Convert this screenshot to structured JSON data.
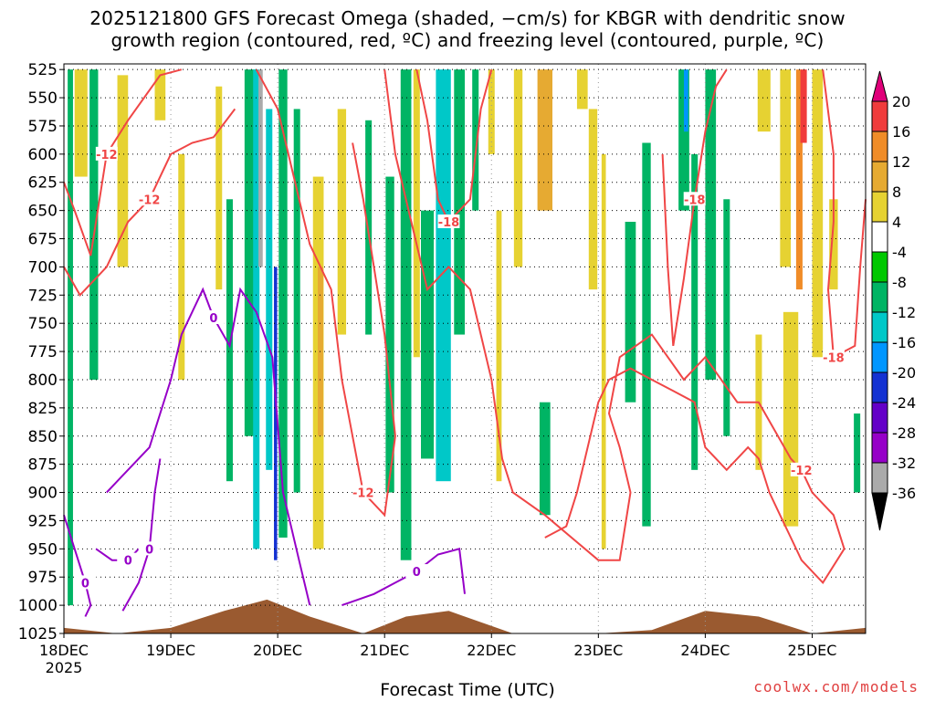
{
  "title": {
    "line1": "2025121800 GFS Forecast Omega (shaded, −cm/s) for KBGR with dendritic snow",
    "line2": "growth region (contoured, red, ºC) and freezing level (contoured, purple, ºC)"
  },
  "credit": "coolwx.com/models",
  "chart_data": {
    "type": "heatmap",
    "xlabel": "Forecast Time (UTC)",
    "x_ticks": [
      "18DEC",
      "19DEC",
      "20DEC",
      "21DEC",
      "22DEC",
      "23DEC",
      "24DEC",
      "25DEC"
    ],
    "x_tick_sublabel": "2025",
    "x_range_days": [
      0,
      7.5
    ],
    "y_ticks": [
      525,
      550,
      575,
      600,
      625,
      650,
      675,
      700,
      725,
      750,
      775,
      800,
      825,
      850,
      875,
      900,
      925,
      950,
      975,
      1000,
      1025
    ],
    "y_range": [
      520,
      1025
    ],
    "grid": "dotted",
    "colorbar": {
      "levels": [
        "20",
        "16",
        "12",
        "8",
        "4",
        "-4",
        "-8",
        "-12",
        "-16",
        "-20",
        "-24",
        "-28",
        "-32",
        "-36"
      ],
      "colors": [
        "#e0007a",
        "#f03c3c",
        "#f08c28",
        "#e6aa32",
        "#e6d232",
        "#ffffff",
        "#00c800",
        "#00b464",
        "#00c8c8",
        "#0096ff",
        "#1432d2",
        "#6400c8",
        "#9600c8",
        "#aaaaaa",
        "#000000"
      ]
    },
    "omega_bands": [
      {
        "t": 0.06,
        "p1": 525,
        "p2": 1000,
        "v": -8,
        "w": 0.05
      },
      {
        "t": 0.16,
        "p1": 525,
        "p2": 620,
        "v": 6,
        "w": 0.12
      },
      {
        "t": 0.28,
        "p1": 525,
        "p2": 800,
        "v": -8,
        "w": 0.08
      },
      {
        "t": 0.55,
        "p1": 530,
        "p2": 700,
        "v": 5,
        "w": 0.1
      },
      {
        "t": 0.9,
        "p1": 525,
        "p2": 570,
        "v": 6,
        "w": 0.1
      },
      {
        "t": 1.1,
        "p1": 600,
        "p2": 800,
        "v": 5,
        "w": 0.06
      },
      {
        "t": 1.45,
        "p1": 540,
        "p2": 720,
        "v": 5,
        "w": 0.06
      },
      {
        "t": 1.55,
        "p1": 640,
        "p2": 890,
        "v": -8,
        "w": 0.06
      },
      {
        "t": 1.75,
        "p1": 525,
        "p2": 850,
        "v": -8,
        "w": 0.12
      },
      {
        "t": 1.8,
        "p1": 525,
        "p2": 950,
        "v": -14,
        "w": 0.06
      },
      {
        "t": 1.84,
        "p1": 525,
        "p2": 700,
        "v": -34,
        "w": 0.04
      },
      {
        "t": 1.92,
        "p1": 560,
        "p2": 880,
        "v": -14,
        "w": 0.06
      },
      {
        "t": 1.98,
        "p1": 700,
        "p2": 960,
        "v": -20,
        "w": 0.03
      },
      {
        "t": 2.05,
        "p1": 525,
        "p2": 940,
        "v": -8,
        "w": 0.08
      },
      {
        "t": 2.18,
        "p1": 560,
        "p2": 900,
        "v": -8,
        "w": 0.06
      },
      {
        "t": 2.38,
        "p1": 620,
        "p2": 950,
        "v": 6,
        "w": 0.1
      },
      {
        "t": 2.4,
        "p1": 700,
        "p2": 850,
        "v": 10,
        "w": 0.05
      },
      {
        "t": 2.6,
        "p1": 560,
        "p2": 760,
        "v": 5,
        "w": 0.08
      },
      {
        "t": 2.85,
        "p1": 570,
        "p2": 760,
        "v": -8,
        "w": 0.06
      },
      {
        "t": 3.05,
        "p1": 620,
        "p2": 900,
        "v": -8,
        "w": 0.08
      },
      {
        "t": 3.2,
        "p1": 525,
        "p2": 960,
        "v": -8,
        "w": 0.1
      },
      {
        "t": 3.3,
        "p1": 525,
        "p2": 780,
        "v": 5,
        "w": 0.06
      },
      {
        "t": 3.4,
        "p1": 650,
        "p2": 870,
        "v": -8,
        "w": 0.12
      },
      {
        "t": 3.55,
        "p1": 525,
        "p2": 890,
        "v": -12,
        "w": 0.14
      },
      {
        "t": 3.7,
        "p1": 525,
        "p2": 760,
        "v": -8,
        "w": 0.1
      },
      {
        "t": 3.85,
        "p1": 525,
        "p2": 650,
        "v": -8,
        "w": 0.06
      },
      {
        "t": 4.0,
        "p1": 525,
        "p2": 600,
        "v": 5,
        "w": 0.06
      },
      {
        "t": 4.07,
        "p1": 650,
        "p2": 890,
        "v": 5,
        "w": 0.05
      },
      {
        "t": 4.25,
        "p1": 525,
        "p2": 700,
        "v": 5,
        "w": 0.08
      },
      {
        "t": 4.5,
        "p1": 525,
        "p2": 650,
        "v": 10,
        "w": 0.14
      },
      {
        "t": 4.5,
        "p1": 820,
        "p2": 920,
        "v": -8,
        "w": 0.1
      },
      {
        "t": 4.85,
        "p1": 525,
        "p2": 560,
        "v": 5,
        "w": 0.1
      },
      {
        "t": 4.95,
        "p1": 560,
        "p2": 720,
        "v": 5,
        "w": 0.08
      },
      {
        "t": 5.05,
        "p1": 600,
        "p2": 950,
        "v": 5,
        "w": 0.04
      },
      {
        "t": 5.3,
        "p1": 660,
        "p2": 820,
        "v": -8,
        "w": 0.1
      },
      {
        "t": 5.45,
        "p1": 590,
        "p2": 930,
        "v": -8,
        "w": 0.08
      },
      {
        "t": 5.8,
        "p1": 525,
        "p2": 650,
        "v": -10,
        "w": 0.1
      },
      {
        "t": 5.82,
        "p1": 525,
        "p2": 580,
        "v": -16,
        "w": 0.04
      },
      {
        "t": 5.9,
        "p1": 600,
        "p2": 880,
        "v": -8,
        "w": 0.06
      },
      {
        "t": 6.05,
        "p1": 525,
        "p2": 800,
        "v": -8,
        "w": 0.1
      },
      {
        "t": 6.2,
        "p1": 640,
        "p2": 850,
        "v": -8,
        "w": 0.06
      },
      {
        "t": 6.5,
        "p1": 760,
        "p2": 880,
        "v": 5,
        "w": 0.06
      },
      {
        "t": 6.55,
        "p1": 525,
        "p2": 580,
        "v": 5,
        "w": 0.12
      },
      {
        "t": 6.75,
        "p1": 525,
        "p2": 700,
        "v": 5,
        "w": 0.1
      },
      {
        "t": 6.8,
        "p1": 740,
        "p2": 930,
        "v": 5,
        "w": 0.14
      },
      {
        "t": 6.88,
        "p1": 525,
        "p2": 720,
        "v": 14,
        "w": 0.06
      },
      {
        "t": 6.92,
        "p1": 525,
        "p2": 590,
        "v": 18,
        "w": 0.06
      },
      {
        "t": 7.05,
        "p1": 525,
        "p2": 780,
        "v": 5,
        "w": 0.1
      },
      {
        "t": 7.2,
        "p1": 640,
        "p2": 720,
        "v": 5,
        "w": 0.08
      },
      {
        "t": 7.42,
        "p1": 830,
        "p2": 900,
        "v": -8,
        "w": 0.06
      }
    ],
    "snow_growth_contours": [
      {
        "label": "-12",
        "points": [
          [
            0,
            625
          ],
          [
            0.1,
            650
          ],
          [
            0.25,
            690
          ],
          [
            0.4,
            600
          ],
          [
            0.6,
            570
          ],
          [
            0.9,
            530
          ],
          [
            1.1,
            525
          ]
        ]
      },
      {
        "label": "-12",
        "points": [
          [
            0,
            700
          ],
          [
            0.15,
            725
          ],
          [
            0.4,
            700
          ],
          [
            0.6,
            660
          ],
          [
            0.8,
            640
          ],
          [
            1.0,
            600
          ],
          [
            1.2,
            590
          ],
          [
            1.4,
            585
          ],
          [
            1.6,
            560
          ]
        ]
      },
      {
        "label": "-12",
        "points": [
          [
            1.8,
            525
          ],
          [
            2.0,
            560
          ],
          [
            2.3,
            680
          ],
          [
            2.5,
            720
          ],
          [
            2.6,
            800
          ],
          [
            2.7,
            850
          ],
          [
            2.8,
            900
          ],
          [
            3.0,
            920
          ],
          [
            3.1,
            850
          ],
          [
            3.0,
            760
          ],
          [
            2.9,
            700
          ],
          [
            2.8,
            640
          ],
          [
            2.7,
            590
          ]
        ]
      },
      {
        "label": "-12",
        "points": [
          [
            3.0,
            525
          ],
          [
            3.1,
            600
          ],
          [
            3.3,
            680
          ],
          [
            3.4,
            720
          ],
          [
            3.6,
            700
          ],
          [
            3.8,
            720
          ],
          [
            3.9,
            760
          ],
          [
            4.0,
            800
          ],
          [
            4.1,
            870
          ],
          [
            4.2,
            900
          ],
          [
            4.5,
            920
          ],
          [
            5.0,
            960
          ],
          [
            5.2,
            960
          ],
          [
            5.3,
            900
          ],
          [
            5.2,
            860
          ],
          [
            5.1,
            830
          ],
          [
            5.2,
            780
          ],
          [
            5.5,
            760
          ],
          [
            5.8,
            800
          ],
          [
            6.0,
            780
          ],
          [
            6.3,
            820
          ],
          [
            6.5,
            820
          ],
          [
            6.8,
            870
          ],
          [
            6.9,
            880
          ],
          [
            7.0,
            900
          ],
          [
            7.2,
            920
          ],
          [
            7.3,
            950
          ],
          [
            7.1,
            980
          ],
          [
            6.9,
            960
          ],
          [
            6.8,
            940
          ],
          [
            6.7,
            920
          ],
          [
            6.6,
            900
          ],
          [
            6.5,
            870
          ],
          [
            6.4,
            860
          ],
          [
            6.2,
            880
          ],
          [
            6.0,
            860
          ],
          [
            5.9,
            820
          ],
          [
            5.7,
            810
          ],
          [
            5.5,
            800
          ],
          [
            5.3,
            790
          ],
          [
            5.1,
            800
          ],
          [
            5.0,
            820
          ],
          [
            4.9,
            860
          ],
          [
            4.8,
            900
          ],
          [
            4.7,
            930
          ],
          [
            4.5,
            940
          ]
        ]
      },
      {
        "label": "-18",
        "points": [
          [
            3.3,
            525
          ],
          [
            3.4,
            570
          ],
          [
            3.5,
            640
          ],
          [
            3.6,
            660
          ],
          [
            3.8,
            640
          ],
          [
            3.9,
            560
          ],
          [
            4.0,
            525
          ]
        ]
      },
      {
        "label": "-18",
        "points": [
          [
            5.6,
            600
          ],
          [
            5.65,
            700
          ],
          [
            5.7,
            770
          ],
          [
            5.8,
            710
          ],
          [
            5.9,
            640
          ],
          [
            6.0,
            580
          ],
          [
            6.1,
            540
          ],
          [
            6.2,
            525
          ]
        ]
      },
      {
        "label": "-18",
        "points": [
          [
            7.1,
            525
          ],
          [
            7.2,
            600
          ],
          [
            7.2,
            660
          ],
          [
            7.15,
            720
          ],
          [
            7.2,
            780
          ],
          [
            7.4,
            770
          ],
          [
            7.45,
            700
          ],
          [
            7.5,
            640
          ]
        ]
      }
    ],
    "freezing_contours": [
      {
        "label": "0",
        "points": [
          [
            0.4,
            900
          ],
          [
            0.6,
            880
          ],
          [
            0.8,
            860
          ],
          [
            1.0,
            800
          ],
          [
            1.1,
            760
          ],
          [
            1.2,
            740
          ],
          [
            1.3,
            720
          ],
          [
            1.4,
            745
          ],
          [
            1.55,
            770
          ],
          [
            1.65,
            720
          ],
          [
            1.8,
            740
          ],
          [
            1.95,
            780
          ],
          [
            2.05,
            900
          ],
          [
            2.2,
            960
          ],
          [
            2.3,
            1000
          ]
        ]
      },
      {
        "label": "0",
        "points": [
          [
            0,
            920
          ],
          [
            0.1,
            950
          ],
          [
            0.2,
            980
          ],
          [
            0.25,
            1000
          ],
          [
            0.2,
            1010
          ]
        ]
      },
      {
        "label": "0",
        "points": [
          [
            0.3,
            950
          ],
          [
            0.45,
            960
          ],
          [
            0.6,
            960
          ],
          [
            0.7,
            950
          ]
        ]
      },
      {
        "label": "0",
        "points": [
          [
            0.55,
            1005
          ],
          [
            0.7,
            980
          ],
          [
            0.8,
            950
          ],
          [
            0.85,
            900
          ],
          [
            0.9,
            870
          ]
        ]
      },
      {
        "label": "0",
        "points": [
          [
            2.6,
            1000
          ],
          [
            2.9,
            990
          ],
          [
            3.1,
            980
          ],
          [
            3.3,
            970
          ],
          [
            3.5,
            955
          ],
          [
            3.7,
            950
          ],
          [
            3.75,
            990
          ]
        ]
      }
    ],
    "terrain_surface_hpa": [
      [
        0,
        1020
      ],
      [
        0.5,
        1025
      ],
      [
        1.0,
        1020
      ],
      [
        1.5,
        1005
      ],
      [
        1.9,
        995
      ],
      [
        2.3,
        1010
      ],
      [
        2.8,
        1025
      ],
      [
        3.2,
        1010
      ],
      [
        3.6,
        1005
      ],
      [
        4.2,
        1025
      ],
      [
        5.0,
        1025
      ],
      [
        5.5,
        1022
      ],
      [
        6.0,
        1005
      ],
      [
        6.5,
        1010
      ],
      [
        7.0,
        1025
      ],
      [
        7.5,
        1020
      ]
    ]
  }
}
